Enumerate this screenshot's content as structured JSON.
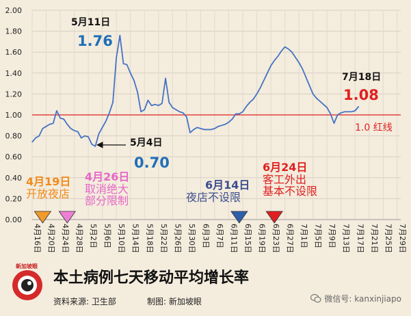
{
  "chart_data": {
    "type": "line",
    "ylim": [
      0,
      2.0
    ],
    "yticks": [
      "0.00",
      "0.20",
      "0.40",
      "0.60",
      "0.80",
      "1.00",
      "1.20",
      "1.40",
      "1.60",
      "1.80",
      "2.00"
    ],
    "x_start": "4月16日",
    "x_end": "7月30日",
    "xtick_labels": [
      "4月16日",
      "4月20日",
      "4月24日",
      "4月28日",
      "5月2日",
      "5月6日",
      "5月10日",
      "5月14日",
      "5月18日",
      "5月22日",
      "5月26日",
      "5月30日",
      "6月3日",
      "6月7日",
      "6月11日",
      "6月15日",
      "6月19日",
      "6月23日",
      "6月27日",
      "7月1日",
      "7月5日",
      "7月9日",
      "7月13日",
      "7月17日",
      "7月21日",
      "7月25日",
      "7月29日"
    ],
    "reference_line": {
      "value": 1.0,
      "label": "1.0 红线",
      "color": "#e02020"
    },
    "series": [
      {
        "color": "#4472c4",
        "x": [
          "4月16日",
          "4月17日",
          "4月18日",
          "4月19日",
          "4月20日",
          "4月21日",
          "4月22日",
          "4月23日",
          "4月24日",
          "4月25日",
          "4月26日",
          "4月27日",
          "4月28日",
          "4月29日",
          "4月30日",
          "5月1日",
          "5月2日",
          "5月3日",
          "5月4日",
          "5月5日",
          "5月6日",
          "5月7日",
          "5月8日",
          "5月9日",
          "5月10日",
          "5月11日",
          "5月12日",
          "5月13日",
          "5月14日",
          "5月15日",
          "5月16日",
          "5月17日",
          "5月18日",
          "5月19日",
          "5月20日",
          "5月21日",
          "5月22日",
          "5月23日",
          "5月24日",
          "5月25日",
          "5月26日",
          "5月27日",
          "5月28日",
          "5月29日",
          "5月30日",
          "5月31日",
          "6月1日",
          "6月2日",
          "6月3日",
          "6月4日",
          "6月5日",
          "6月6日",
          "6月7日",
          "6月8日",
          "6月9日",
          "6月10日",
          "6月11日",
          "6月12日",
          "6月13日",
          "6月14日",
          "6月15日",
          "6月16日",
          "6月17日",
          "6月18日",
          "6月19日",
          "6月20日",
          "6月21日",
          "6月22日",
          "6月23日",
          "6月24日",
          "6月25日",
          "6月26日",
          "6月27日",
          "6月28日",
          "6月29日",
          "6月30日",
          "7月1日",
          "7月2日",
          "7月3日",
          "7月4日",
          "7月5日",
          "7月6日",
          "7月7日",
          "7月8日",
          "7月9日",
          "7月10日",
          "7月11日",
          "7月12日",
          "7月13日",
          "7月14日",
          "7月15日",
          "7月16日",
          "7月17日",
          "7月18日"
        ],
        "values": [
          0.74,
          0.78,
          0.8,
          0.87,
          0.89,
          0.91,
          0.92,
          1.04,
          0.97,
          0.96,
          0.91,
          0.87,
          0.85,
          0.84,
          0.78,
          0.8,
          0.79,
          0.72,
          0.7,
          0.82,
          0.88,
          0.94,
          1.02,
          1.12,
          1.55,
          1.76,
          1.49,
          1.48,
          1.4,
          1.33,
          1.22,
          1.03,
          1.05,
          1.14,
          1.09,
          1.1,
          1.09,
          1.11,
          1.35,
          1.12,
          1.07,
          1.05,
          1.03,
          1.02,
          0.98,
          0.83,
          0.86,
          0.88,
          0.87,
          0.86,
          0.86,
          0.86,
          0.87,
          0.89,
          0.9,
          0.91,
          0.93,
          0.96,
          1.01,
          1.01,
          1.03,
          1.08,
          1.12,
          1.15,
          1.2,
          1.26,
          1.33,
          1.4,
          1.47,
          1.52,
          1.56,
          1.61,
          1.65,
          1.63,
          1.6,
          1.55,
          1.5,
          1.44,
          1.36,
          1.28,
          1.2,
          1.16,
          1.13,
          1.1,
          1.07,
          1.01,
          0.92,
          1.0,
          1.02,
          1.03,
          1.03,
          1.03,
          1.04,
          1.08
        ]
      }
    ],
    "annotations": [
      {
        "id": "may11",
        "date": "5月11日",
        "value": "1.76"
      },
      {
        "id": "may4",
        "date": "5月4日",
        "value": "0.70"
      },
      {
        "id": "jul18",
        "date": "7月18日",
        "value": "1.08"
      }
    ],
    "events": [
      {
        "id": "apr19",
        "date": "4月19日",
        "text": "开放夜店",
        "color": "#f39a2c"
      },
      {
        "id": "apr26",
        "date": "4月26日",
        "text": "取消绝大部分限制",
        "line1": "取消绝大",
        "line2": "部分限制",
        "color": "#ee7fd6"
      },
      {
        "id": "jun14",
        "date": "6月14日",
        "text": "夜店不设限",
        "color": "#2e5fa8"
      },
      {
        "id": "jun24",
        "date": "6月24日",
        "text": "客工外出基本不设限",
        "line1": "客工外出",
        "line2": "基本不设限",
        "color": "#e02020"
      }
    ]
  },
  "footer": {
    "title": "本土病例七天移动平均增长率",
    "source": "资料来源:  卫生部",
    "credit": "制图:  新加坡眼",
    "logo_text": "新加坡眼",
    "wechat": "微信号: kanxinjiapo"
  }
}
